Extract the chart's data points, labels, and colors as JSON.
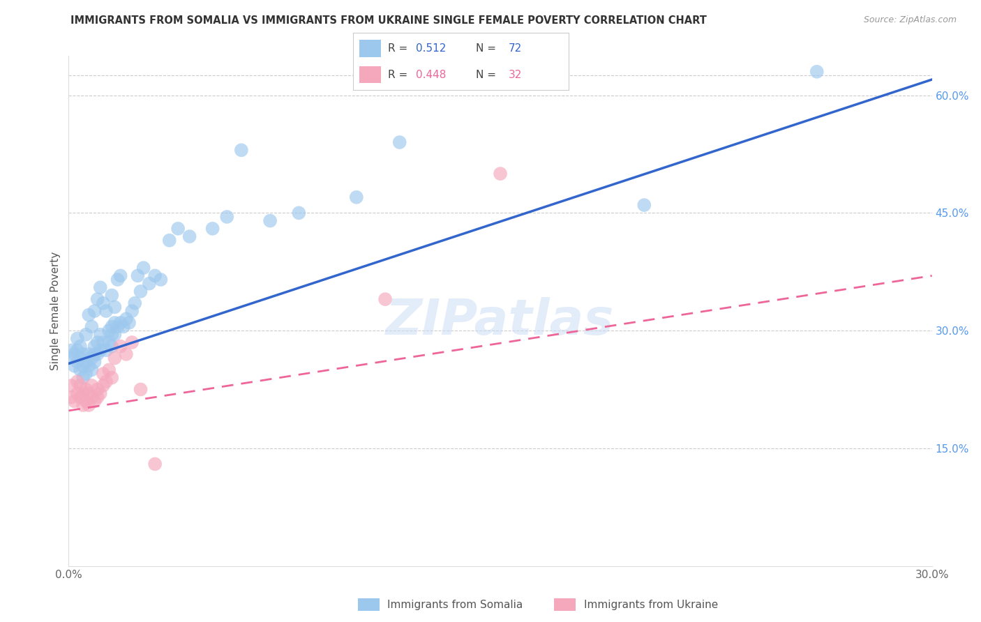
{
  "title": "IMMIGRANTS FROM SOMALIA VS IMMIGRANTS FROM UKRAINE SINGLE FEMALE POVERTY CORRELATION CHART",
  "source": "Source: ZipAtlas.com",
  "ylabel": "Single Female Poverty",
  "xlim": [
    0.0,
    0.3
  ],
  "ylim": [
    0.0,
    0.65
  ],
  "x_ticks": [
    0.0,
    0.05,
    0.1,
    0.15,
    0.2,
    0.25,
    0.3
  ],
  "x_tick_labels": [
    "0.0%",
    "",
    "",
    "",
    "",
    "",
    "30.0%"
  ],
  "y_ticks_right": [
    0.15,
    0.3,
    0.45,
    0.6
  ],
  "y_tick_labels_right": [
    "15.0%",
    "30.0%",
    "45.0%",
    "60.0%"
  ],
  "somalia_color": "#9DC8EE",
  "ukraine_color": "#F5A8BC",
  "somalia_R": "0.512",
  "somalia_N": "72",
  "ukraine_R": "0.448",
  "ukraine_N": "32",
  "somalia_line_color": "#3366CC",
  "ukraine_line_color": "#EE6699",
  "watermark": "ZIPatlas",
  "legend_label_somalia": "Immigrants from Somalia",
  "legend_label_ukraine": "Immigrants from Ukraine",
  "somalia_line_x0": 0.0,
  "somalia_line_y0": 0.258,
  "somalia_line_x1": 0.3,
  "somalia_line_y1": 0.62,
  "ukraine_line_x0": 0.0,
  "ukraine_line_y0": 0.198,
  "ukraine_line_x1": 0.3,
  "ukraine_line_y1": 0.37,
  "somalia_scatter_x": [
    0.001,
    0.001,
    0.002,
    0.002,
    0.003,
    0.003,
    0.003,
    0.004,
    0.004,
    0.004,
    0.005,
    0.005,
    0.005,
    0.006,
    0.006,
    0.006,
    0.007,
    0.007,
    0.007,
    0.008,
    0.008,
    0.008,
    0.009,
    0.009,
    0.009,
    0.009,
    0.01,
    0.01,
    0.01,
    0.011,
    0.011,
    0.011,
    0.012,
    0.012,
    0.013,
    0.013,
    0.014,
    0.014,
    0.015,
    0.015,
    0.015,
    0.015,
    0.016,
    0.016,
    0.016,
    0.017,
    0.017,
    0.018,
    0.018,
    0.019,
    0.02,
    0.021,
    0.022,
    0.023,
    0.024,
    0.025,
    0.026,
    0.028,
    0.03,
    0.032,
    0.035,
    0.038,
    0.042,
    0.05,
    0.055,
    0.06,
    0.07,
    0.08,
    0.1,
    0.115,
    0.2,
    0.26
  ],
  "somalia_scatter_y": [
    0.265,
    0.275,
    0.255,
    0.27,
    0.26,
    0.275,
    0.29,
    0.25,
    0.265,
    0.28,
    0.24,
    0.255,
    0.27,
    0.245,
    0.26,
    0.295,
    0.255,
    0.27,
    0.32,
    0.25,
    0.265,
    0.305,
    0.26,
    0.27,
    0.28,
    0.325,
    0.27,
    0.285,
    0.34,
    0.275,
    0.295,
    0.355,
    0.285,
    0.335,
    0.275,
    0.325,
    0.285,
    0.3,
    0.28,
    0.295,
    0.305,
    0.345,
    0.295,
    0.31,
    0.33,
    0.305,
    0.365,
    0.31,
    0.37,
    0.305,
    0.315,
    0.31,
    0.325,
    0.335,
    0.37,
    0.35,
    0.38,
    0.36,
    0.37,
    0.365,
    0.415,
    0.43,
    0.42,
    0.43,
    0.445,
    0.53,
    0.44,
    0.45,
    0.47,
    0.54,
    0.46,
    0.63
  ],
  "ukraine_scatter_x": [
    0.001,
    0.001,
    0.002,
    0.003,
    0.003,
    0.004,
    0.004,
    0.005,
    0.005,
    0.006,
    0.006,
    0.007,
    0.007,
    0.008,
    0.008,
    0.009,
    0.01,
    0.01,
    0.011,
    0.012,
    0.012,
    0.013,
    0.014,
    0.015,
    0.016,
    0.018,
    0.02,
    0.022,
    0.025,
    0.03,
    0.11,
    0.15
  ],
  "ukraine_scatter_y": [
    0.215,
    0.23,
    0.21,
    0.22,
    0.235,
    0.215,
    0.23,
    0.205,
    0.22,
    0.21,
    0.225,
    0.205,
    0.22,
    0.215,
    0.23,
    0.21,
    0.215,
    0.225,
    0.22,
    0.23,
    0.245,
    0.235,
    0.25,
    0.24,
    0.265,
    0.28,
    0.27,
    0.285,
    0.225,
    0.13,
    0.34,
    0.5
  ]
}
